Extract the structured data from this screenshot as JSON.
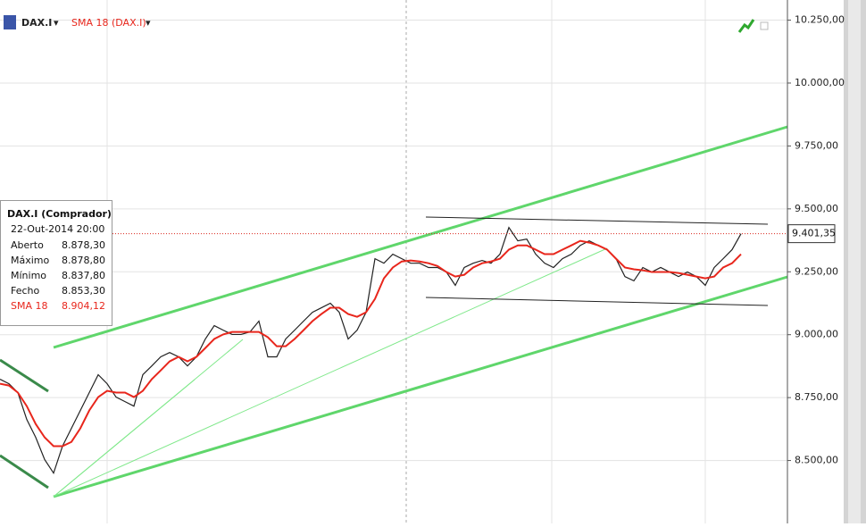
{
  "chart_data": {
    "type": "line",
    "ylim": [
      8250,
      10330
    ],
    "yticks": [
      {
        "value": 8500,
        "label": "8.500,00"
      },
      {
        "value": 8750,
        "label": "8.750,00"
      },
      {
        "value": 9000,
        "label": "9.000,00"
      },
      {
        "value": 9250,
        "label": "9.250,00"
      },
      {
        "value": 9500,
        "label": "9.500,00"
      },
      {
        "value": 9750,
        "label": "9.750,00"
      },
      {
        "value": 10000,
        "label": "10.000,00"
      },
      {
        "value": 10250,
        "label": "10.250,00"
      }
    ],
    "grid": true,
    "last_price": {
      "value": 9401.35,
      "label": "9.401,35",
      "color": "#d9261c"
    },
    "series": [
      {
        "name": "DAX.I",
        "color": "#222222",
        "values": [
          8823,
          8805,
          8770,
          8663,
          8592,
          8504,
          8450,
          8557,
          8628,
          8699,
          8770,
          8841,
          8805,
          8752,
          8734,
          8716,
          8841,
          8876,
          8912,
          8929,
          8912,
          8876,
          8912,
          8983,
          9036,
          9018,
          9001,
          9001,
          9011,
          9054,
          8912,
          8912,
          8983,
          9018,
          9054,
          9089,
          9107,
          9125,
          9089,
          8983,
          9018,
          9089,
          9302,
          9284,
          9320,
          9302,
          9284,
          9284,
          9267,
          9267,
          9249,
          9196,
          9267,
          9284,
          9295,
          9284,
          9320,
          9426,
          9373,
          9380,
          9320,
          9284,
          9267,
          9302,
          9320,
          9355,
          9373,
          9355,
          9338,
          9302,
          9231,
          9214,
          9267,
          9249,
          9267,
          9249,
          9231,
          9249,
          9231,
          9196,
          9267,
          9302,
          9338,
          9401
        ]
      },
      {
        "name": "SMA 18 (DAX.I)",
        "color": "#e8261c",
        "values": [
          8805,
          8798,
          8770,
          8716,
          8645,
          8592,
          8557,
          8557,
          8574,
          8628,
          8699,
          8752,
          8777,
          8770,
          8770,
          8752,
          8777,
          8823,
          8858,
          8894,
          8912,
          8894,
          8912,
          8947,
          8983,
          9001,
          9011,
          9011,
          9011,
          9011,
          8990,
          8954,
          8954,
          8983,
          9018,
          9054,
          9082,
          9107,
          9107,
          9082,
          9071,
          9089,
          9142,
          9224,
          9267,
          9291,
          9295,
          9291,
          9284,
          9273,
          9249,
          9231,
          9238,
          9267,
          9284,
          9291,
          9302,
          9338,
          9355,
          9355,
          9338,
          9320,
          9320,
          9338,
          9355,
          9373,
          9366,
          9355,
          9338,
          9302,
          9267,
          9260,
          9256,
          9249,
          9249,
          9249,
          9245,
          9238,
          9231,
          9224,
          9231,
          9267,
          9284,
          9320
        ]
      }
    ],
    "info_box": {
      "title": "DAX.I (Comprador)",
      "date": "22-Out-2014 20:00",
      "rows": [
        [
          "Aberto",
          "8.878,30"
        ],
        [
          "Máximo",
          "8.878,80"
        ],
        [
          "Mínimo",
          "8.837,80"
        ],
        [
          "Fecho",
          "8.853,30"
        ],
        [
          "SMA 18",
          "8.904,12"
        ]
      ]
    }
  }
}
